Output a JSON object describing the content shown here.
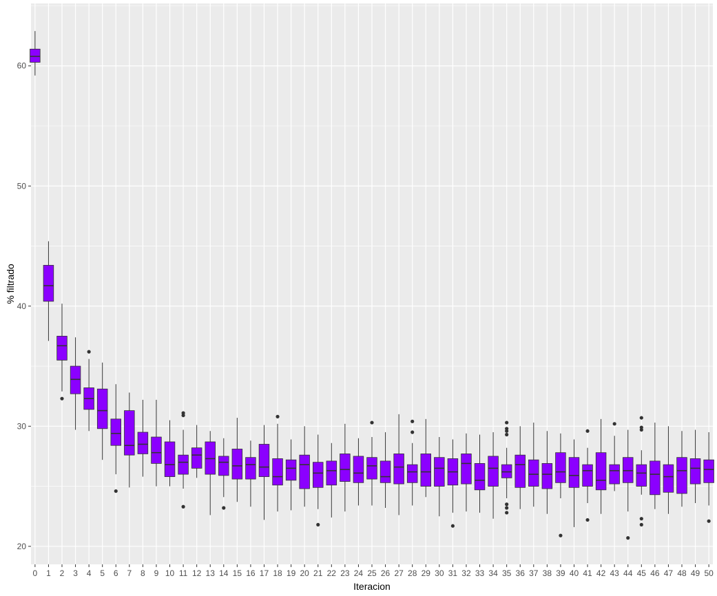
{
  "chart_data": {
    "type": "boxplot",
    "title": "",
    "xlabel": "Iteracion",
    "ylabel": "% filtrado",
    "ylim": [
      18.5,
      65.2
    ],
    "y_ticks": [
      20,
      30,
      40,
      50,
      60
    ],
    "grid": true,
    "legend": "none",
    "colors": {
      "panel_background": "#ebebeb",
      "grid": "#ffffff",
      "box_fill": "#8b00ff",
      "box_outline": "#333333",
      "outlier": "#333333",
      "tick_text": "#4d4d4d",
      "axis_title": "#000000"
    },
    "categories": [
      "0",
      "1",
      "2",
      "3",
      "4",
      "5",
      "6",
      "7",
      "8",
      "9",
      "10",
      "11",
      "12",
      "13",
      "14",
      "15",
      "16",
      "17",
      "18",
      "19",
      "20",
      "21",
      "22",
      "23",
      "24",
      "25",
      "26",
      "27",
      "28",
      "29",
      "30",
      "31",
      "32",
      "33",
      "34",
      "35",
      "36",
      "37",
      "38",
      "39",
      "40",
      "41",
      "42",
      "43",
      "44",
      "45",
      "46",
      "47",
      "48",
      "49",
      "50"
    ],
    "boxes": [
      {
        "min": 59.2,
        "q1": 60.3,
        "median": 60.8,
        "q3": 61.4,
        "max": 62.9,
        "outliers": []
      },
      {
        "min": 37.1,
        "q1": 40.4,
        "median": 41.7,
        "q3": 43.4,
        "max": 45.4,
        "outliers": []
      },
      {
        "min": 32.9,
        "q1": 35.5,
        "median": 36.7,
        "q3": 37.5,
        "max": 40.2,
        "outliers": [
          32.3
        ]
      },
      {
        "min": 29.7,
        "q1": 32.7,
        "median": 33.9,
        "q3": 35.0,
        "max": 37.4,
        "outliers": []
      },
      {
        "min": 29.6,
        "q1": 31.4,
        "median": 32.3,
        "q3": 33.2,
        "max": 35.6,
        "outliers": [
          36.2
        ]
      },
      {
        "min": 27.2,
        "q1": 29.8,
        "median": 31.3,
        "q3": 33.1,
        "max": 35.3,
        "outliers": []
      },
      {
        "min": 26.0,
        "q1": 28.4,
        "median": 29.4,
        "q3": 30.6,
        "max": 33.5,
        "outliers": [
          24.6
        ]
      },
      {
        "min": 24.9,
        "q1": 27.6,
        "median": 28.4,
        "q3": 31.3,
        "max": 32.8,
        "outliers": []
      },
      {
        "min": 25.8,
        "q1": 27.7,
        "median": 28.5,
        "q3": 29.5,
        "max": 32.2,
        "outliers": []
      },
      {
        "min": 25.0,
        "q1": 26.9,
        "median": 27.8,
        "q3": 29.1,
        "max": 32.2,
        "outliers": []
      },
      {
        "min": 25.0,
        "q1": 25.8,
        "median": 26.8,
        "q3": 28.7,
        "max": 30.5,
        "outliers": []
      },
      {
        "min": 24.8,
        "q1": 26.0,
        "median": 27.0,
        "q3": 27.6,
        "max": 29.7,
        "outliers": [
          23.3,
          30.9,
          31.1
        ]
      },
      {
        "min": 25.7,
        "q1": 26.5,
        "median": 27.6,
        "q3": 28.2,
        "max": 30.1,
        "outliers": []
      },
      {
        "min": 22.6,
        "q1": 26.0,
        "median": 27.3,
        "q3": 28.7,
        "max": 29.6,
        "outliers": []
      },
      {
        "min": 24.1,
        "q1": 25.9,
        "median": 27.0,
        "q3": 27.5,
        "max": 29.0,
        "outliers": [
          23.2
        ]
      },
      {
        "min": 23.7,
        "q1": 25.6,
        "median": 26.7,
        "q3": 28.1,
        "max": 30.7,
        "outliers": []
      },
      {
        "min": 23.3,
        "q1": 25.6,
        "median": 26.8,
        "q3": 27.4,
        "max": 28.8,
        "outliers": []
      },
      {
        "min": 22.2,
        "q1": 25.8,
        "median": 26.6,
        "q3": 28.5,
        "max": 30.1,
        "outliers": []
      },
      {
        "min": 22.9,
        "q1": 25.1,
        "median": 25.8,
        "q3": 27.3,
        "max": 30.2,
        "outliers": [
          30.8
        ]
      },
      {
        "min": 23.0,
        "q1": 25.5,
        "median": 26.5,
        "q3": 27.2,
        "max": 28.9,
        "outliers": []
      },
      {
        "min": 23.3,
        "q1": 24.8,
        "median": 26.8,
        "q3": 27.6,
        "max": 30.0,
        "outliers": []
      },
      {
        "min": 23.1,
        "q1": 24.9,
        "median": 26.1,
        "q3": 27.0,
        "max": 29.3,
        "outliers": [
          21.8
        ]
      },
      {
        "min": 22.4,
        "q1": 25.1,
        "median": 26.3,
        "q3": 27.1,
        "max": 28.6,
        "outliers": []
      },
      {
        "min": 22.9,
        "q1": 25.4,
        "median": 26.4,
        "q3": 27.7,
        "max": 30.2,
        "outliers": []
      },
      {
        "min": 23.4,
        "q1": 25.3,
        "median": 26.1,
        "q3": 27.5,
        "max": 29.0,
        "outliers": []
      },
      {
        "min": 23.4,
        "q1": 25.6,
        "median": 26.7,
        "q3": 27.4,
        "max": 29.1,
        "outliers": [
          30.3
        ]
      },
      {
        "min": 23.2,
        "q1": 25.3,
        "median": 25.8,
        "q3": 27.1,
        "max": 29.5,
        "outliers": []
      },
      {
        "min": 22.6,
        "q1": 25.2,
        "median": 26.6,
        "q3": 27.7,
        "max": 31.0,
        "outliers": []
      },
      {
        "min": 23.4,
        "q1": 25.3,
        "median": 26.2,
        "q3": 26.8,
        "max": 28.6,
        "outliers": [
          29.5,
          30.4
        ]
      },
      {
        "min": 24.1,
        "q1": 25.0,
        "median": 26.2,
        "q3": 27.7,
        "max": 30.6,
        "outliers": []
      },
      {
        "min": 22.5,
        "q1": 25.0,
        "median": 26.5,
        "q3": 27.4,
        "max": 29.1,
        "outliers": []
      },
      {
        "min": 22.8,
        "q1": 25.1,
        "median": 26.2,
        "q3": 27.3,
        "max": 28.9,
        "outliers": [
          21.7
        ]
      },
      {
        "min": 22.9,
        "q1": 25.2,
        "median": 26.9,
        "q3": 27.7,
        "max": 29.4,
        "outliers": []
      },
      {
        "min": 22.8,
        "q1": 24.7,
        "median": 25.5,
        "q3": 26.9,
        "max": 29.3,
        "outliers": []
      },
      {
        "min": 22.3,
        "q1": 25.0,
        "median": 26.5,
        "q3": 27.5,
        "max": 29.5,
        "outliers": []
      },
      {
        "min": 24.0,
        "q1": 25.7,
        "median": 26.2,
        "q3": 26.8,
        "max": 28.2,
        "outliers": [
          22.8,
          23.2,
          23.5,
          29.3,
          29.6,
          29.8,
          30.3
        ]
      },
      {
        "min": 23.1,
        "q1": 24.9,
        "median": 26.8,
        "q3": 27.6,
        "max": 30.0,
        "outliers": []
      },
      {
        "min": 23.3,
        "q1": 25.0,
        "median": 26.0,
        "q3": 27.2,
        "max": 30.3,
        "outliers": []
      },
      {
        "min": 22.7,
        "q1": 24.8,
        "median": 26.0,
        "q3": 26.9,
        "max": 29.6,
        "outliers": []
      },
      {
        "min": 24.0,
        "q1": 25.3,
        "median": 26.2,
        "q3": 27.8,
        "max": 29.4,
        "outliers": [
          20.9
        ]
      },
      {
        "min": 21.6,
        "q1": 24.9,
        "median": 25.9,
        "q3": 27.4,
        "max": 28.9,
        "outliers": []
      },
      {
        "min": 23.6,
        "q1": 25.0,
        "median": 26.3,
        "q3": 26.8,
        "max": 28.2,
        "outliers": [
          22.2,
          29.6
        ]
      },
      {
        "min": 22.7,
        "q1": 24.7,
        "median": 25.5,
        "q3": 27.8,
        "max": 30.6,
        "outliers": []
      },
      {
        "min": 24.6,
        "q1": 25.2,
        "median": 26.3,
        "q3": 26.8,
        "max": 29.2,
        "outliers": [
          30.2
        ]
      },
      {
        "min": 22.9,
        "q1": 25.3,
        "median": 26.3,
        "q3": 27.4,
        "max": 29.7,
        "outliers": [
          20.7
        ]
      },
      {
        "min": 24.3,
        "q1": 25.0,
        "median": 26.1,
        "q3": 26.8,
        "max": 28.0,
        "outliers": [
          21.8,
          22.3,
          29.7,
          29.9,
          30.7
        ]
      },
      {
        "min": 23.1,
        "q1": 24.3,
        "median": 26.0,
        "q3": 27.1,
        "max": 30.3,
        "outliers": []
      },
      {
        "min": 22.7,
        "q1": 24.5,
        "median": 25.8,
        "q3": 26.8,
        "max": 30.0,
        "outliers": []
      },
      {
        "min": 23.3,
        "q1": 24.4,
        "median": 26.3,
        "q3": 27.4,
        "max": 29.6,
        "outliers": []
      },
      {
        "min": 23.6,
        "q1": 25.2,
        "median": 26.5,
        "q3": 27.3,
        "max": 29.7,
        "outliers": []
      },
      {
        "min": 23.4,
        "q1": 25.3,
        "median": 26.4,
        "q3": 27.2,
        "max": 29.5,
        "outliers": [
          22.1
        ]
      }
    ]
  }
}
